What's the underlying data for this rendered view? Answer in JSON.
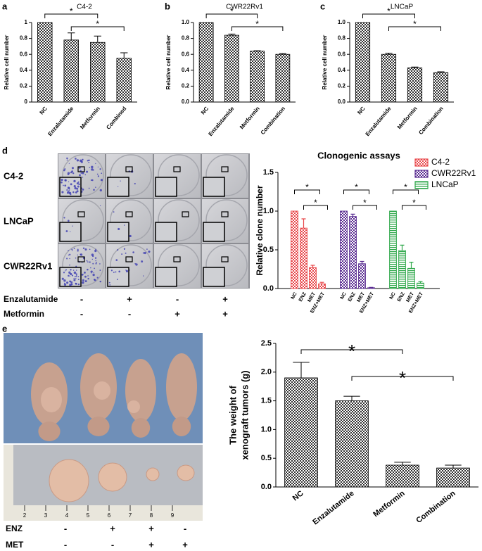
{
  "chart_data": [
    {
      "type": "bar",
      "label": "a",
      "title": "C4-2",
      "ylabel": "Relative cell number",
      "categories": [
        "NC",
        "Enzalutamide",
        "Metformin",
        "Combined"
      ],
      "values": [
        1.0,
        0.78,
        0.75,
        0.55
      ],
      "errors": [
        0,
        0.09,
        0.08,
        0.07
      ],
      "ylim": [
        0,
        1.0
      ],
      "yticks": [
        0,
        0.2,
        0.4,
        0.6,
        0.8,
        1
      ],
      "significance": [
        "*",
        "*"
      ]
    },
    {
      "type": "bar",
      "label": "b",
      "title": "CWR22Rv1",
      "ylabel": "Relative cell number",
      "categories": [
        "NC",
        "Enzalutamide",
        "Metformin",
        "Combination"
      ],
      "values": [
        1.0,
        0.84,
        0.64,
        0.6
      ],
      "errors": [
        0,
        0.015,
        0.005,
        0.01
      ],
      "ylim": [
        0,
        1.0
      ],
      "yticks": [
        {
          "value": 0,
          "label": "0.0"
        },
        0.2,
        0.4,
        0.6,
        0.8,
        {
          "value": 1,
          "label": "1.0"
        }
      ],
      "significance": [
        "*",
        "*"
      ]
    },
    {
      "type": "bar",
      "label": "c",
      "title": "LNCaP",
      "ylabel": "Relative cell number",
      "categories": [
        "NC",
        "Enzalutamide",
        "Metformin",
        "Combination"
      ],
      "values": [
        1.0,
        0.6,
        0.43,
        0.37
      ],
      "errors": [
        0,
        0.015,
        0.01,
        0.01
      ],
      "ylim": [
        0,
        1.0
      ],
      "yticks": [
        {
          "value": 0,
          "label": "0.0"
        },
        0.2,
        0.4,
        0.6,
        0.8,
        {
          "value": 1,
          "label": "1.0"
        }
      ],
      "significance": [
        "*",
        "*"
      ]
    },
    {
      "type": "grouped_bar",
      "label": "d",
      "title": "Clonogenic assays",
      "ylabel": "Relative clone number",
      "categories": [
        "NC",
        "ENZ",
        "MET",
        "ENZ+MET"
      ],
      "series": [
        {
          "name": "C4-2",
          "color": "#e8474a",
          "values": [
            1.0,
            0.78,
            0.27,
            0.06
          ],
          "errors": [
            0,
            0.12,
            0.03,
            0.02
          ]
        },
        {
          "name": "CWR22Rv1",
          "color": "#5a2d91",
          "values": [
            1.0,
            0.93,
            0.32,
            0.01
          ],
          "errors": [
            0,
            0.03,
            0.03,
            0.005
          ]
        },
        {
          "name": "LNCaP",
          "color": "#2ea84a",
          "values": [
            1.0,
            0.49,
            0.26,
            0.07
          ],
          "errors": [
            0,
            0.07,
            0.08,
            0.02
          ]
        }
      ],
      "ylim": [
        0,
        1.5
      ],
      "yticks": [
        {
          "value": 0,
          "label": "0.0"
        },
        0.5,
        {
          "value": 1,
          "label": "1.0"
        },
        1.5
      ],
      "significance": [
        "*",
        "*",
        "*",
        "*",
        "*",
        "*"
      ]
    },
    {
      "type": "bar",
      "label": "e",
      "ylabel": [
        "The weight of",
        "xenograft tumors (g)"
      ],
      "categories": [
        "NC",
        "Enzalutamide",
        "Metformin",
        "Combination"
      ],
      "values": [
        1.9,
        1.5,
        0.38,
        0.33
      ],
      "errors": [
        0.27,
        0.08,
        0.05,
        0.05
      ],
      "ylim": [
        0,
        2.5
      ],
      "yticks": [
        {
          "value": 0,
          "label": "0.0"
        },
        0.5,
        {
          "value": 1,
          "label": "1.0"
        },
        1.5,
        {
          "value": 2,
          "label": "2.0"
        },
        2.5
      ],
      "significance": [
        "*",
        "*"
      ]
    }
  ],
  "panel_d_photos": {
    "rows": [
      "C4-2",
      "LNCaP",
      "CWR22Rv1"
    ],
    "treatments": [
      {
        "name": "Enzalutamide",
        "signs": [
          "-",
          "+",
          "-",
          "+"
        ]
      },
      {
        "name": "Metformin",
        "signs": [
          "-",
          "-",
          "+",
          "+"
        ]
      }
    ]
  },
  "panel_e_photos": {
    "ruler": [
      2,
      3,
      4,
      5,
      6,
      7,
      8,
      9
    ],
    "treatments": [
      {
        "name": "ENZ",
        "signs": [
          "-",
          "+",
          "+",
          "-"
        ]
      },
      {
        "name": "MET",
        "signs": [
          "-",
          "-",
          "+",
          "+"
        ]
      }
    ]
  }
}
